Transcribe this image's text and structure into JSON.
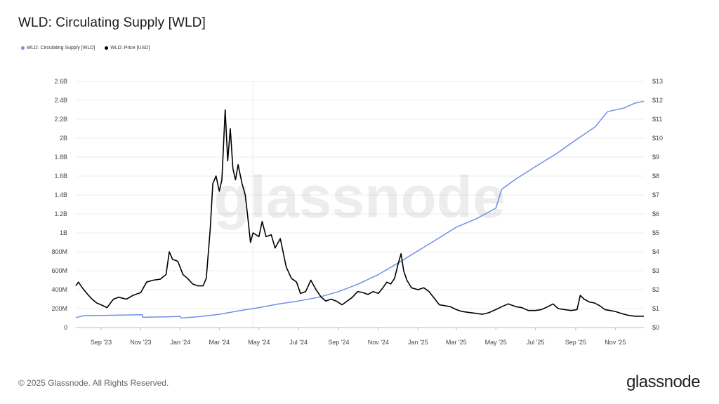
{
  "title": "WLD: Circulating Supply [WLD]",
  "legend": [
    {
      "label": "WLD: Circulating Supply [WLD]",
      "color": "#6f8fe8"
    },
    {
      "label": "WLD: Price [USD]",
      "color": "#000000"
    }
  ],
  "watermark": "glassnode",
  "footer": {
    "copyright": "© 2025 Glassnode. All Rights Reserved.",
    "brand": "glassnode"
  },
  "chart_data": {
    "type": "line",
    "legend_position": "top-left",
    "grid": true,
    "x_ticks": [
      "Sep '23",
      "Nov '23",
      "Jan '24",
      "Mar '24",
      "May '24",
      "Jul '24",
      "Sep '24",
      "Nov '24",
      "Jan '25",
      "Mar '25",
      "May '25",
      "Jul '25",
      "Sep '25",
      "Nov '25"
    ],
    "x_range": [
      "2023-07-24",
      "2025-12-15"
    ],
    "y_left": {
      "ticks": [
        "0",
        "200M",
        "400M",
        "600M",
        "800M",
        "1B",
        "1.2B",
        "1.4B",
        "1.6B",
        "1.8B",
        "2B",
        "2.2B",
        "2.4B",
        "2.6B"
      ],
      "range": [
        0,
        2600000000
      ]
    },
    "y_right": {
      "ticks": [
        "$0",
        "$1",
        "$2",
        "$3",
        "$4",
        "$5",
        "$6",
        "$7",
        "$8",
        "$9",
        "$10",
        "$11",
        "$12",
        "$13"
      ],
      "range": [
        0,
        13
      ]
    },
    "series": [
      {
        "name": "WLD: Circulating Supply [WLD]",
        "axis": "left",
        "color": "#6f8fe8",
        "points": [
          [
            "2023-07-24",
            105000000
          ],
          [
            "2023-08-05",
            125000000
          ],
          [
            "2023-09-01",
            128000000
          ],
          [
            "2023-10-15",
            133000000
          ],
          [
            "2023-11-03",
            136000000
          ],
          [
            "2023-11-04",
            108000000
          ],
          [
            "2023-12-15",
            114000000
          ],
          [
            "2024-01-01",
            118000000
          ],
          [
            "2024-01-02",
            100000000
          ],
          [
            "2024-02-01",
            116000000
          ],
          [
            "2024-03-01",
            140000000
          ],
          [
            "2024-04-01",
            178000000
          ],
          [
            "2024-05-01",
            210000000
          ],
          [
            "2024-06-01",
            250000000
          ],
          [
            "2024-07-01",
            280000000
          ],
          [
            "2024-08-01",
            320000000
          ],
          [
            "2024-09-01",
            380000000
          ],
          [
            "2024-10-01",
            460000000
          ],
          [
            "2024-11-01",
            560000000
          ],
          [
            "2024-12-01",
            680000000
          ],
          [
            "2025-01-01",
            810000000
          ],
          [
            "2025-02-01",
            940000000
          ],
          [
            "2025-03-01",
            1060000000
          ],
          [
            "2025-04-01",
            1150000000
          ],
          [
            "2025-05-01",
            1260000000
          ],
          [
            "2025-05-10",
            1460000000
          ],
          [
            "2025-06-01",
            1570000000
          ],
          [
            "2025-07-01",
            1700000000
          ],
          [
            "2025-08-01",
            1830000000
          ],
          [
            "2025-09-01",
            1980000000
          ],
          [
            "2025-10-01",
            2120000000
          ],
          [
            "2025-10-20",
            2280000000
          ],
          [
            "2025-11-15",
            2320000000
          ],
          [
            "2025-12-01",
            2370000000
          ],
          [
            "2025-12-15",
            2390000000
          ]
        ]
      },
      {
        "name": "WLD: Price [USD]",
        "axis": "right",
        "color": "#000000",
        "points": [
          [
            "2023-07-24",
            2.2
          ],
          [
            "2023-07-28",
            2.4
          ],
          [
            "2023-08-03",
            2.1
          ],
          [
            "2023-08-10",
            1.8
          ],
          [
            "2023-08-18",
            1.5
          ],
          [
            "2023-08-25",
            1.3
          ],
          [
            "2023-09-01",
            1.2
          ],
          [
            "2023-09-10",
            1.05
          ],
          [
            "2023-09-20",
            1.5
          ],
          [
            "2023-09-28",
            1.6
          ],
          [
            "2023-10-10",
            1.5
          ],
          [
            "2023-10-20",
            1.7
          ],
          [
            "2023-11-01",
            1.85
          ],
          [
            "2023-11-10",
            2.4
          ],
          [
            "2023-11-20",
            2.5
          ],
          [
            "2023-12-01",
            2.55
          ],
          [
            "2023-12-10",
            2.8
          ],
          [
            "2023-12-15",
            4.0
          ],
          [
            "2023-12-20",
            3.6
          ],
          [
            "2023-12-28",
            3.5
          ],
          [
            "2024-01-05",
            2.8
          ],
          [
            "2024-01-12",
            2.6
          ],
          [
            "2024-01-20",
            2.3
          ],
          [
            "2024-01-28",
            2.2
          ],
          [
            "2024-02-05",
            2.2
          ],
          [
            "2024-02-10",
            2.6
          ],
          [
            "2024-02-16",
            5.2
          ],
          [
            "2024-02-20",
            7.6
          ],
          [
            "2024-02-25",
            8.0
          ],
          [
            "2024-03-01",
            7.2
          ],
          [
            "2024-03-05",
            7.8
          ],
          [
            "2024-03-10",
            11.5
          ],
          [
            "2024-03-14",
            8.8
          ],
          [
            "2024-03-18",
            10.5
          ],
          [
            "2024-03-22",
            8.4
          ],
          [
            "2024-03-26",
            7.8
          ],
          [
            "2024-03-30",
            8.6
          ],
          [
            "2024-04-05",
            7.6
          ],
          [
            "2024-04-10",
            7.0
          ],
          [
            "2024-04-14",
            5.8
          ],
          [
            "2024-04-18",
            4.5
          ],
          [
            "2024-04-22",
            5.0
          ],
          [
            "2024-05-01",
            4.8
          ],
          [
            "2024-05-06",
            5.6
          ],
          [
            "2024-05-12",
            4.8
          ],
          [
            "2024-05-20",
            4.9
          ],
          [
            "2024-05-26",
            4.2
          ],
          [
            "2024-06-03",
            4.7
          ],
          [
            "2024-06-12",
            3.2
          ],
          [
            "2024-06-20",
            2.6
          ],
          [
            "2024-06-28",
            2.4
          ],
          [
            "2024-07-04",
            1.8
          ],
          [
            "2024-07-12",
            1.9
          ],
          [
            "2024-07-20",
            2.5
          ],
          [
            "2024-07-28",
            2.0
          ],
          [
            "2024-08-05",
            1.6
          ],
          [
            "2024-08-12",
            1.4
          ],
          [
            "2024-08-20",
            1.5
          ],
          [
            "2024-08-28",
            1.4
          ],
          [
            "2024-09-06",
            1.2
          ],
          [
            "2024-09-14",
            1.4
          ],
          [
            "2024-09-22",
            1.6
          ],
          [
            "2024-09-30",
            1.9
          ],
          [
            "2024-10-08",
            1.85
          ],
          [
            "2024-10-16",
            1.75
          ],
          [
            "2024-10-24",
            1.9
          ],
          [
            "2024-11-01",
            1.8
          ],
          [
            "2024-11-08",
            2.1
          ],
          [
            "2024-11-14",
            2.4
          ],
          [
            "2024-11-20",
            2.3
          ],
          [
            "2024-11-26",
            2.6
          ],
          [
            "2024-12-01",
            3.3
          ],
          [
            "2024-12-06",
            3.9
          ],
          [
            "2024-12-10",
            3.0
          ],
          [
            "2024-12-15",
            2.5
          ],
          [
            "2024-12-22",
            2.1
          ],
          [
            "2025-01-01",
            2.0
          ],
          [
            "2025-01-10",
            2.1
          ],
          [
            "2025-01-18",
            1.9
          ],
          [
            "2025-01-26",
            1.55
          ],
          [
            "2025-02-03",
            1.2
          ],
          [
            "2025-02-12",
            1.15
          ],
          [
            "2025-02-20",
            1.1
          ],
          [
            "2025-03-01",
            0.95
          ],
          [
            "2025-03-10",
            0.85
          ],
          [
            "2025-03-20",
            0.8
          ],
          [
            "2025-04-01",
            0.75
          ],
          [
            "2025-04-10",
            0.7
          ],
          [
            "2025-04-20",
            0.78
          ],
          [
            "2025-05-01",
            0.95
          ],
          [
            "2025-05-10",
            1.1
          ],
          [
            "2025-05-20",
            1.25
          ],
          [
            "2025-06-01",
            1.1
          ],
          [
            "2025-06-10",
            1.05
          ],
          [
            "2025-06-20",
            0.9
          ],
          [
            "2025-07-01",
            0.9
          ],
          [
            "2025-07-10",
            0.95
          ],
          [
            "2025-07-20",
            1.1
          ],
          [
            "2025-07-28",
            1.25
          ],
          [
            "2025-08-05",
            1.0
          ],
          [
            "2025-08-15",
            0.95
          ],
          [
            "2025-08-25",
            0.9
          ],
          [
            "2025-09-03",
            0.95
          ],
          [
            "2025-09-08",
            1.7
          ],
          [
            "2025-09-14",
            1.5
          ],
          [
            "2025-09-22",
            1.35
          ],
          [
            "2025-09-30",
            1.3
          ],
          [
            "2025-10-08",
            1.15
          ],
          [
            "2025-10-16",
            0.95
          ],
          [
            "2025-10-24",
            0.9
          ],
          [
            "2025-11-01",
            0.85
          ],
          [
            "2025-11-10",
            0.75
          ],
          [
            "2025-11-20",
            0.65
          ],
          [
            "2025-12-01",
            0.6
          ],
          [
            "2025-12-15",
            0.6
          ]
        ]
      }
    ]
  }
}
